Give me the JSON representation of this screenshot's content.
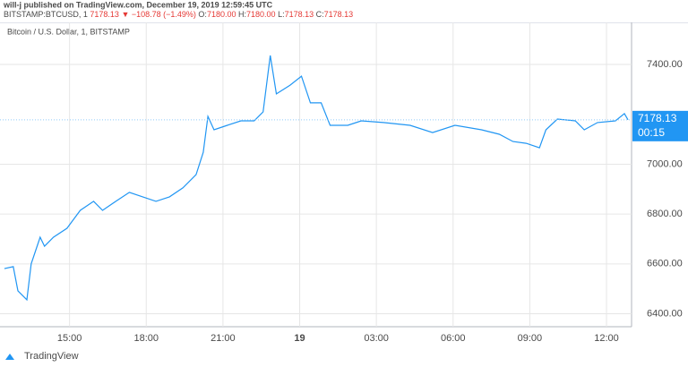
{
  "header": {
    "publisher": "will-j published on TradingView.com, December 19, 2019 12:59:45 UTC",
    "symbol": "BITSTAMP:BTCUSD, 1",
    "price": "7178.13",
    "change": "▼ −108.78 (−1.49%)",
    "ohlc": [
      {
        "label": "O:",
        "value": "7180.00"
      },
      {
        "label": "H:",
        "value": "7180.00"
      },
      {
        "label": "L:",
        "value": "7178.13"
      },
      {
        "label": "C:",
        "value": "7178.13"
      }
    ]
  },
  "chart_data": {
    "type": "line",
    "title": "Bitcoin / U.S. Dollar, 1, BITSTAMP",
    "color": "#2196f3",
    "x": [
      12.45,
      12.8,
      12.98,
      13.33,
      13.5,
      13.85,
      14.02,
      14.37,
      14.9,
      15.42,
      15.94,
      16.29,
      16.81,
      17.34,
      17.86,
      18.38,
      18.91,
      19.43,
      19.95,
      20.23,
      20.41,
      20.65,
      21.17,
      21.7,
      22.22,
      22.57,
      22.85,
      23.09,
      23.62,
      24.07,
      24.42,
      24.84,
      25.19,
      25.88,
      26.41,
      27.28,
      28.32,
      29.2,
      30.07,
      31.11,
      31.81,
      32.34,
      32.86,
      33.38,
      33.63,
      34.08,
      34.78,
      35.13,
      35.65,
      36.35,
      36.7,
      36.84
    ],
    "series": [
      {
        "name": "BTCUSD",
        "color": "#2196f3",
        "values": [
          6581,
          6589,
          6492,
          6456,
          6600,
          6707,
          6671,
          6707,
          6743,
          6815,
          6851,
          6815,
          6851,
          6887,
          6869,
          6851,
          6869,
          6905,
          6958,
          7048,
          7192,
          7138,
          7156,
          7174,
          7174,
          7210,
          7436,
          7282,
          7317,
          7353,
          7246,
          7246,
          7156,
          7156,
          7174,
          7167,
          7156,
          7127,
          7156,
          7138,
          7120,
          7091,
          7084,
          7066,
          7138,
          7181,
          7174,
          7138,
          7167,
          7174,
          7203,
          7178.13
        ]
      }
    ],
    "xlim": [
      12.28,
      36.98
    ],
    "xticks": [
      {
        "value": 15,
        "label": "15:00"
      },
      {
        "value": 18,
        "label": "18:00"
      },
      {
        "value": 21,
        "label": "21:00"
      },
      {
        "value": 24,
        "label": "19"
      },
      {
        "value": 27,
        "label": "03:00"
      },
      {
        "value": 30,
        "label": "06:00"
      },
      {
        "value": 33,
        "label": "09:00"
      },
      {
        "value": 36,
        "label": "12:00"
      }
    ],
    "ylim": [
      6348,
      7569
    ],
    "yticks": [
      {
        "value": 6400,
        "label": "6400.00"
      },
      {
        "value": 6600,
        "label": "6600.00"
      },
      {
        "value": 6800,
        "label": "6800.00"
      },
      {
        "value": 7000,
        "label": "7000.00"
      },
      {
        "value": 7400,
        "label": "7400.00"
      }
    ],
    "grid": true,
    "last_price": {
      "value": 7178.13,
      "label": "7178.13"
    },
    "countdown": "00:15"
  },
  "footer": {
    "logo": "TradingView"
  }
}
